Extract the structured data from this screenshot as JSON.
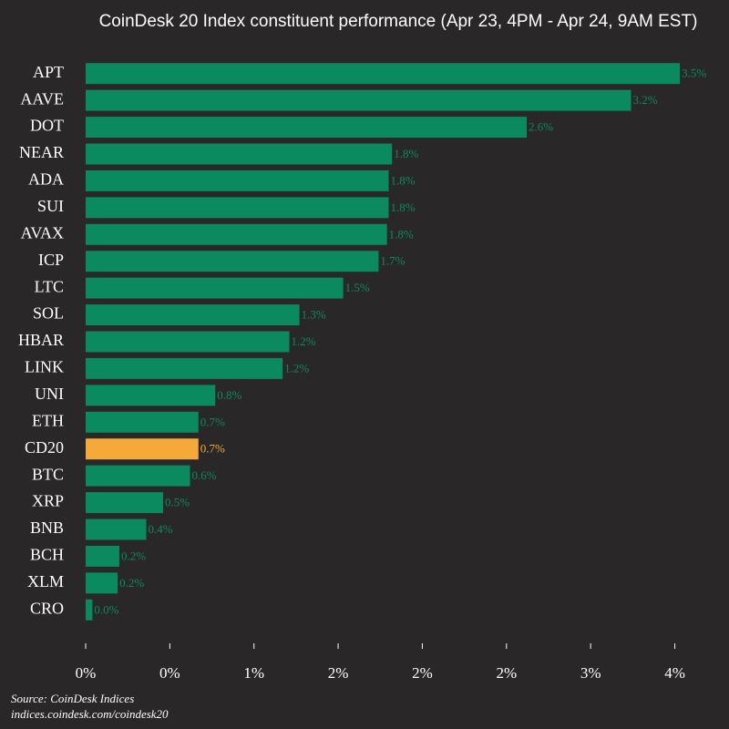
{
  "chart_data": {
    "type": "bar",
    "orientation": "horizontal",
    "title": "CoinDesk 20 Index constituent performance (Apr 23, 4PM - Apr 24, 9AM EST)",
    "categories": [
      "APT",
      "AAVE",
      "DOT",
      "NEAR",
      "ADA",
      "SUI",
      "AVAX",
      "ICP",
      "LTC",
      "SOL",
      "HBAR",
      "LINK",
      "UNI",
      "ETH",
      "CD20",
      "BTC",
      "XRP",
      "BNB",
      "BCH",
      "XLM",
      "CRO"
    ],
    "values": [
      3.53,
      3.24,
      2.62,
      1.82,
      1.8,
      1.8,
      1.79,
      1.74,
      1.53,
      1.27,
      1.21,
      1.17,
      0.77,
      0.67,
      0.67,
      0.62,
      0.46,
      0.36,
      0.2,
      0.19,
      0.04
    ],
    "value_labels": [
      "3.5%",
      "3.2%",
      "2.6%",
      "1.8%",
      "1.8%",
      "1.8%",
      "1.8%",
      "1.7%",
      "1.5%",
      "1.3%",
      "1.2%",
      "1.2%",
      "0.8%",
      "0.7%",
      "0.7%",
      "0.6%",
      "0.5%",
      "0.4%",
      "0.2%",
      "0.2%",
      "0.0%"
    ],
    "colors": [
      "#0b8a5f",
      "#0b8a5f",
      "#0b8a5f",
      "#0b8a5f",
      "#0b8a5f",
      "#0b8a5f",
      "#0b8a5f",
      "#0b8a5f",
      "#0b8a5f",
      "#0b8a5f",
      "#0b8a5f",
      "#0b8a5f",
      "#0b8a5f",
      "#0b8a5f",
      "#f6a93b",
      "#0b8a5f",
      "#0b8a5f",
      "#0b8a5f",
      "#0b8a5f",
      "#0b8a5f",
      "#0b8a5f"
    ],
    "xlim": [
      0,
      3.6
    ],
    "xticks": [
      {
        "value": 0,
        "label": "0%"
      },
      {
        "value": 0.5,
        "label": "0%"
      },
      {
        "value": 1,
        "label": "1%"
      },
      {
        "value": 1.5,
        "label": "2%"
      },
      {
        "value": 2,
        "label": "2%"
      },
      {
        "value": 2.5,
        "label": "2%"
      },
      {
        "value": 3,
        "label": "3%"
      },
      {
        "value": 3.5,
        "label": "4%"
      }
    ],
    "grid": false,
    "source": "Source: CoinDesk Indices",
    "source_url": "indices.coindesk.com/coindesk20"
  }
}
